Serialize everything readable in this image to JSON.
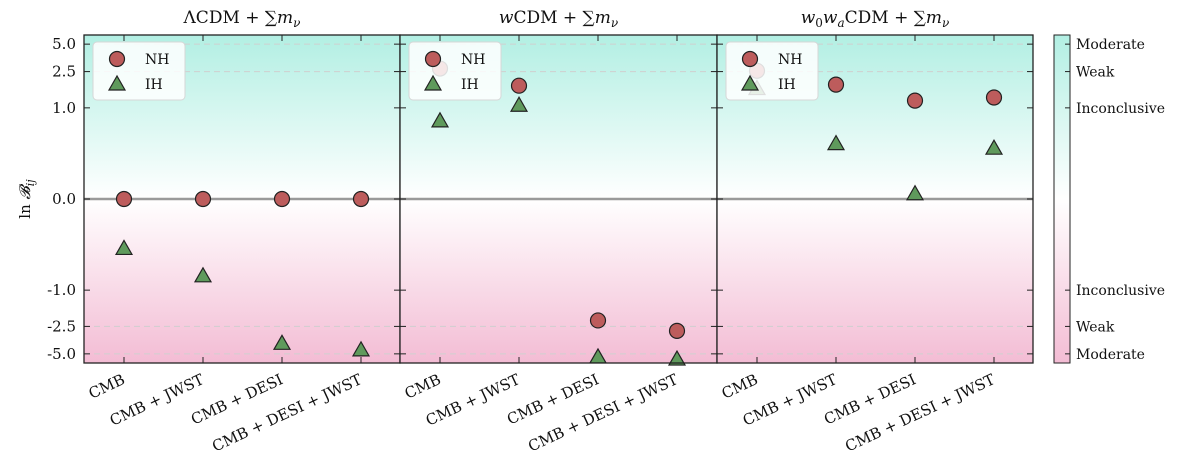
{
  "chart_data": [
    {
      "type": "scatter",
      "title_parts": [
        {
          "text": "ΛCDM + ",
          "italic": false
        },
        {
          "text": "∑",
          "italic": false
        },
        {
          "text": "m",
          "italic": true
        },
        {
          "text": "ν",
          "italic": true,
          "sub": true
        }
      ],
      "categories": [
        "CMB",
        "CMB + JWST",
        "CMB + DESI",
        "CMB + DESI + JWST"
      ],
      "series": [
        {
          "name": "NH",
          "values": [
            0.0,
            0.0,
            0.0,
            0.0
          ]
        },
        {
          "name": "IH",
          "values": [
            -0.55,
            -0.85,
            -3.9,
            -4.6
          ]
        }
      ]
    },
    {
      "type": "scatter",
      "title_parts": [
        {
          "text": "w",
          "italic": true
        },
        {
          "text": "CDM + ",
          "italic": false
        },
        {
          "text": "∑",
          "italic": false
        },
        {
          "text": "m",
          "italic": true
        },
        {
          "text": "ν",
          "italic": true,
          "sub": true
        }
      ],
      "categories": [
        "CMB",
        "CMB + JWST",
        "CMB + DESI",
        "CMB + DESI + JWST"
      ],
      "series": [
        {
          "name": "NH",
          "values": [
            2.7,
            1.75,
            -2.15,
            -2.8
          ]
        },
        {
          "name": "IH",
          "values": [
            0.85,
            1.05,
            -5.5,
            -5.8
          ]
        }
      ]
    },
    {
      "type": "scatter",
      "title_parts": [
        {
          "text": "w",
          "italic": true
        },
        {
          "text": "0",
          "italic": false,
          "sub": true
        },
        {
          "text": "w",
          "italic": true
        },
        {
          "text": "a",
          "italic": true,
          "sub": true
        },
        {
          "text": "CDM + ",
          "italic": false
        },
        {
          "text": "∑",
          "italic": false
        },
        {
          "text": "m",
          "italic": true
        },
        {
          "text": "ν",
          "italic": true,
          "sub": true
        }
      ],
      "categories": [
        "CMB",
        "CMB + JWST",
        "CMB + DESI",
        "CMB + DESI + JWST"
      ],
      "series": [
        {
          "name": "NH",
          "values": [
            2.55,
            1.8,
            1.2,
            1.3
          ]
        },
        {
          "name": "IH",
          "values": [
            1.6,
            0.6,
            0.05,
            0.55
          ]
        }
      ]
    }
  ],
  "axis": {
    "ylabel": {
      "prefix": "ln ",
      "symbol": "𝓑",
      "sub": "ij"
    },
    "yticks": [
      {
        "value": 5.0,
        "label": "5.0"
      },
      {
        "value": 2.5,
        "label": "2.5"
      },
      {
        "value": 1.0,
        "label": "1.0"
      },
      {
        "value": 0.0,
        "label": "0.0"
      },
      {
        "value": -1.0,
        "label": "-1.0"
      },
      {
        "value": -2.5,
        "label": "-2.5"
      },
      {
        "value": -5.0,
        "label": "-5.0"
      }
    ],
    "ylim": [
      -6.3,
      6.3
    ],
    "scale": "symlog (linear for |y| ≤ 1, logarithmic beyond)",
    "zero_line": true,
    "dashed_guides": [
      5.0,
      2.5,
      -2.5,
      -5.0
    ]
  },
  "legend": {
    "placement": "top-left",
    "entries": [
      {
        "label": "NH",
        "marker": "circle"
      },
      {
        "label": "IH",
        "marker": "triangle"
      }
    ]
  },
  "colorbar": {
    "labels": [
      {
        "value": 5.0,
        "text": "Moderate"
      },
      {
        "value": 2.5,
        "text": "Weak"
      },
      {
        "value": 1.0,
        "text": "Inconclusive"
      },
      {
        "value": -1.0,
        "text": "Inconclusive"
      },
      {
        "value": -2.5,
        "text": "Weak"
      },
      {
        "value": -5.0,
        "text": "Moderate"
      }
    ]
  },
  "colors": {
    "nh_fill": "#bd5c5c",
    "ih_fill": "#5f9a5c",
    "positive_shade": "#b2efe3",
    "negative_shade": "#f3bcd4",
    "zero_line": "#9a9a9a",
    "guide": "#cfcfcf",
    "edge": "#222222"
  }
}
